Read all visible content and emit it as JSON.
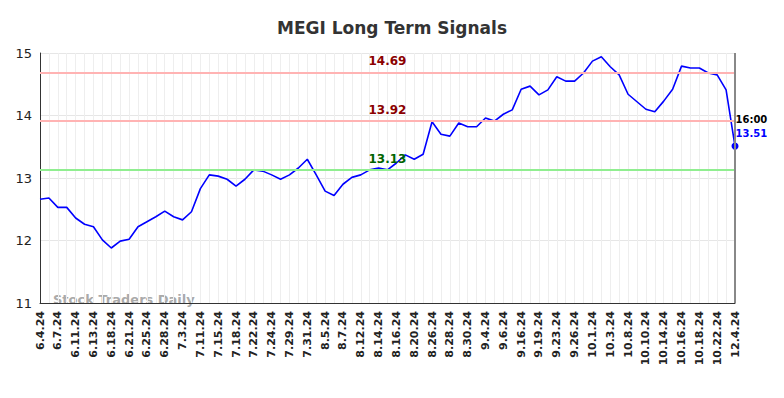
{
  "chart_data": {
    "type": "line",
    "title": "MEGI Long Term Signals",
    "categories": [
      "6.4.24",
      null,
      "6.7.24",
      null,
      "6.11.24",
      null,
      "6.13.24",
      null,
      "6.18.24",
      null,
      "6.21.24",
      null,
      "6.25.24",
      null,
      "6.28.24",
      null,
      "7.3.24",
      null,
      "7.11.24",
      null,
      "7.15.24",
      null,
      "7.18.24",
      null,
      "7.22.24",
      null,
      "7.24.24",
      null,
      "7.29.24",
      null,
      "7.31.24",
      null,
      "8.5.24",
      null,
      "8.7.24",
      null,
      "8.12.24",
      null,
      "8.14.24",
      null,
      "8.16.24",
      null,
      "8.20.24",
      null,
      "8.26.24",
      null,
      "8.28.24",
      null,
      "8.30.24",
      null,
      "9.4.24",
      null,
      "9.6.24",
      null,
      "9.16.24",
      null,
      "9.19.24",
      null,
      "9.23.24",
      null,
      "9.26.24",
      null,
      "10.1.24",
      null,
      "10.3.24",
      null,
      "10.8.24",
      null,
      "10.10.24",
      null,
      "10.14.24",
      null,
      "10.16.24",
      null,
      "10.18.24",
      null,
      "10.22.24",
      null,
      "12.4.24"
    ],
    "values": [
      12.66,
      12.68,
      12.53,
      12.53,
      12.36,
      12.26,
      12.22,
      12.01,
      11.88,
      11.99,
      12.02,
      12.22,
      12.3,
      12.38,
      12.47,
      12.38,
      12.33,
      12.46,
      12.83,
      13.05,
      13.03,
      12.98,
      12.87,
      12.98,
      13.13,
      13.11,
      13.05,
      12.98,
      13.05,
      13.16,
      13.3,
      13.05,
      12.79,
      12.72,
      12.9,
      13.01,
      13.05,
      13.13,
      13.16,
      13.13,
      13.24,
      13.37,
      13.3,
      13.38,
      13.9,
      13.7,
      13.67,
      13.88,
      13.82,
      13.82,
      13.96,
      13.91,
      14.02,
      14.09,
      14.42,
      14.47,
      14.33,
      14.41,
      14.62,
      14.55,
      14.55,
      14.68,
      14.87,
      14.94,
      14.78,
      14.65,
      14.34,
      14.22,
      14.1,
      14.06,
      14.23,
      14.42,
      14.79,
      14.76,
      14.76,
      14.68,
      14.65,
      14.41,
      13.51
    ],
    "color": "#0000ff",
    "ylim": [
      11,
      15
    ],
    "yticks": [
      11,
      12,
      13,
      14,
      15
    ],
    "grid": true,
    "annotations": [
      {
        "value": 14.69,
        "color": "#ffb3b3",
        "label_color": "#8b0000"
      },
      {
        "value": 13.92,
        "color": "#ffb3b3",
        "label_color": "#8b0000"
      },
      {
        "value": 13.13,
        "color": "#90ee90",
        "label_color": "#006400"
      }
    ],
    "last_label": "16:00",
    "watermark": "Stock Traders Daily"
  }
}
